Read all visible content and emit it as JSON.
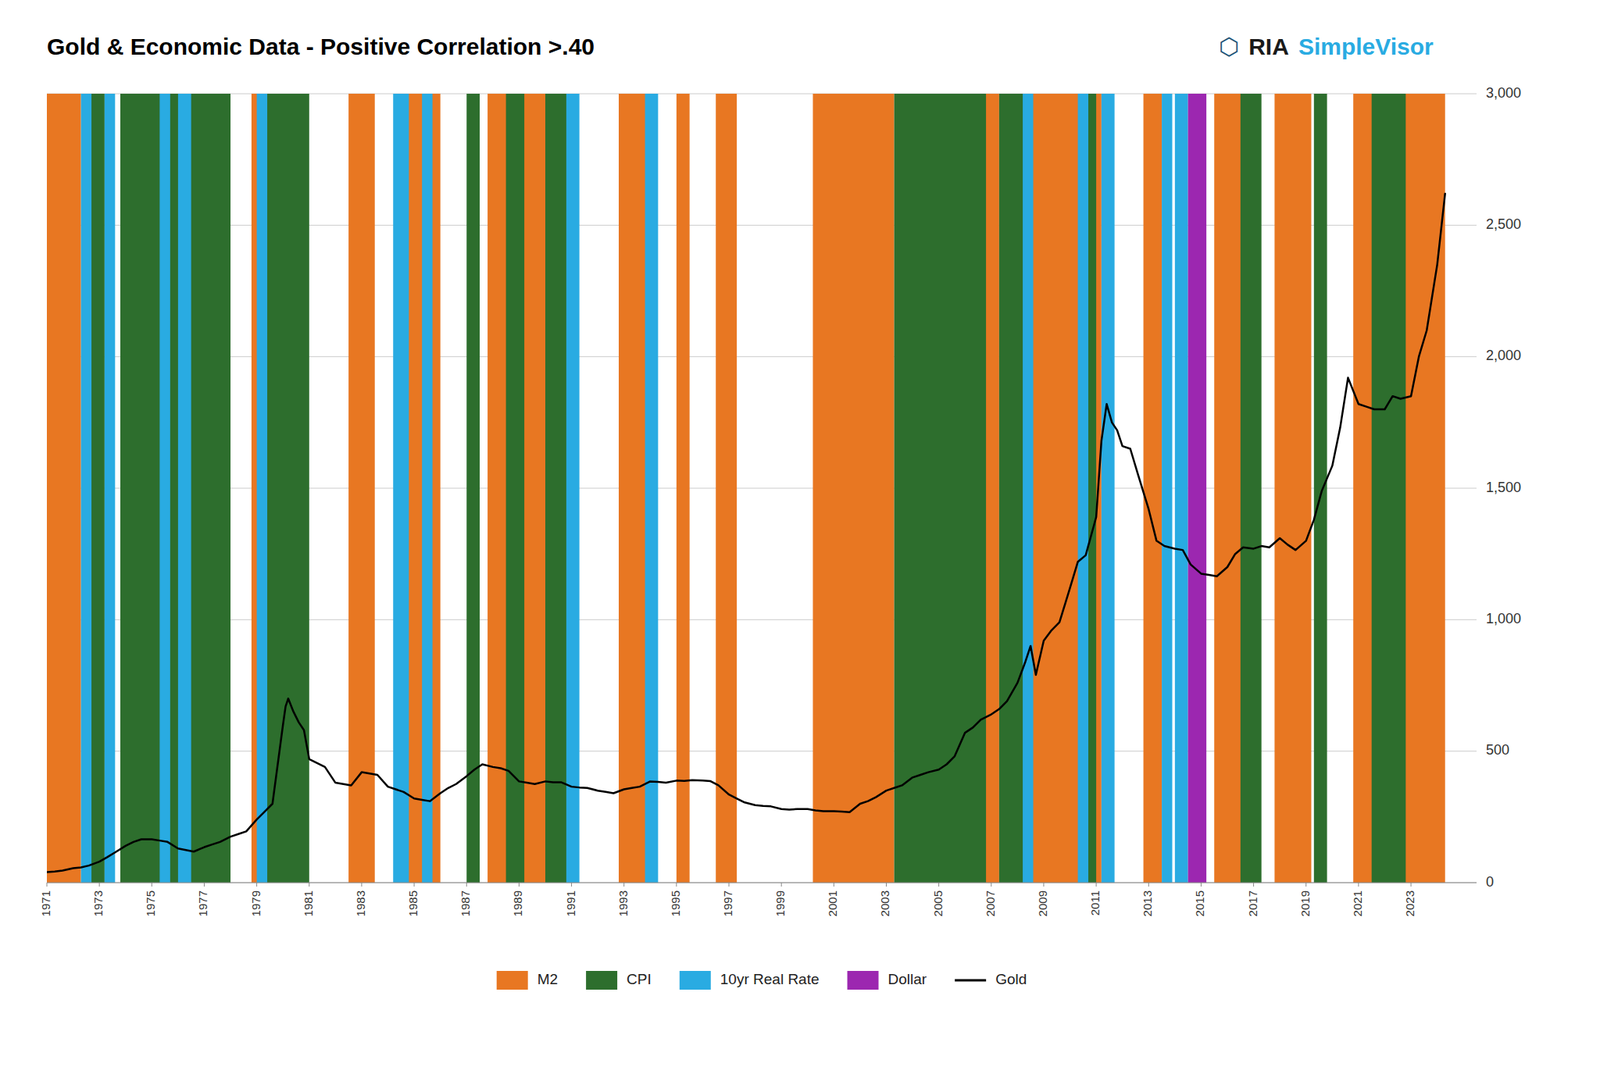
{
  "chart_data": {
    "type": "line",
    "title": "Gold & Economic Data - Positive Correlation >.40",
    "annotations": [
      {
        "text": "⬡",
        "color": "#1a5276"
      },
      {
        "text": "RIA",
        "color": "#1a1a1a"
      },
      {
        "text": "SimpleVisor",
        "color": "#29ABE2"
      }
    ],
    "xlim": [
      1971,
      2025.5
    ],
    "xticks": [
      1971,
      1973,
      1975,
      1977,
      1979,
      1981,
      1983,
      1985,
      1987,
      1989,
      1991,
      1993,
      1995,
      1997,
      1999,
      2001,
      2003,
      2005,
      2007,
      2009,
      2011,
      2013,
      2015,
      2017,
      2019,
      2021,
      2023
    ],
    "ylim": [
      0,
      3000
    ],
    "yticks": [
      0,
      500,
      {
        "value": 1000,
        "label": "1,000"
      },
      {
        "value": 1500,
        "label": "1,500"
      },
      {
        "value": 2000,
        "label": "2,000"
      },
      {
        "value": 2500,
        "label": "2,500"
      },
      {
        "value": 3000,
        "label": "3,000"
      }
    ],
    "grid": true,
    "legend": "bottom",
    "series": [
      {
        "name": "M2",
        "type": "band",
        "color": "#E87722",
        "bands": [
          [
            1971.0,
            1972.3
          ],
          [
            1974.2,
            1974.8
          ],
          [
            1975.5,
            1977.3
          ],
          [
            1978.8,
            1980.3
          ],
          [
            1982.5,
            1983.5
          ],
          [
            1984.5,
            1986.0
          ],
          [
            1987.8,
            1990.5
          ],
          [
            1992.8,
            1994.0
          ],
          [
            1995.0,
            1995.5
          ],
          [
            1996.5,
            1997.3
          ],
          [
            2000.2,
            2003.3
          ],
          [
            2004.5,
            2007.3
          ],
          [
            2008.5,
            2011.2
          ],
          [
            2012.8,
            2013.5
          ],
          [
            2015.5,
            2017.0
          ],
          [
            2017.8,
            2019.2
          ],
          [
            2020.8,
            2024.3
          ]
        ]
      },
      {
        "name": "CPI",
        "type": "band",
        "color": "#2D6E2D",
        "bands": [
          [
            1972.5,
            1973.2
          ],
          [
            1973.8,
            1978.0
          ],
          [
            1979.2,
            1981.0
          ],
          [
            1987.0,
            1987.5
          ],
          [
            1988.5,
            1989.2
          ],
          [
            1990.0,
            1991.2
          ],
          [
            2003.3,
            2006.8
          ],
          [
            2007.3,
            2008.5
          ],
          [
            2010.5,
            2011.0
          ],
          [
            2016.5,
            2017.3
          ],
          [
            2019.3,
            2019.8
          ],
          [
            2021.5,
            2022.8
          ]
        ]
      },
      {
        "name": "10yr Real Rate",
        "type": "band",
        "color": "#29ABE2",
        "bands": [
          [
            1972.3,
            1972.7
          ],
          [
            1973.2,
            1973.6
          ],
          [
            1975.3,
            1975.7
          ],
          [
            1976.0,
            1976.5
          ],
          [
            1979.0,
            1979.4
          ],
          [
            1984.2,
            1984.8
          ],
          [
            1985.3,
            1985.7
          ],
          [
            1990.8,
            1991.3
          ],
          [
            1993.8,
            1994.3
          ],
          [
            2008.2,
            2008.6
          ],
          [
            2010.3,
            2010.7
          ],
          [
            2011.2,
            2011.7
          ],
          [
            2013.5,
            2013.9
          ],
          [
            2014.0,
            2014.5
          ]
        ]
      },
      {
        "name": "Dollar",
        "type": "band",
        "color": "#9C27B0",
        "bands": [
          [
            2014.5,
            2015.2
          ]
        ]
      },
      {
        "name": "Gold",
        "type": "line",
        "color": "#000000",
        "x": [
          1971.0,
          1971.3,
          1971.6,
          1972.0,
          1972.3,
          1972.6,
          1973.0,
          1973.3,
          1973.6,
          1974.0,
          1974.3,
          1974.6,
          1975.0,
          1975.3,
          1975.6,
          1976.0,
          1976.3,
          1976.6,
          1977.0,
          1977.3,
          1977.6,
          1978.0,
          1978.3,
          1978.6,
          1979.0,
          1979.3,
          1979.6,
          1980.0,
          1980.1,
          1980.2,
          1980.4,
          1980.6,
          1980.8,
          1981.0,
          1981.3,
          1981.6,
          1982.0,
          1982.3,
          1982.6,
          1983.0,
          1983.3,
          1983.6,
          1984.0,
          1984.3,
          1984.6,
          1985.0,
          1985.3,
          1985.6,
          1986.0,
          1986.3,
          1986.6,
          1987.0,
          1987.3,
          1987.6,
          1988.0,
          1988.3,
          1988.6,
          1989.0,
          1989.3,
          1989.6,
          1990.0,
          1990.3,
          1990.6,
          1991.0,
          1991.3,
          1991.6,
          1992.0,
          1992.3,
          1992.6,
          1993.0,
          1993.3,
          1993.6,
          1994.0,
          1994.3,
          1994.6,
          1995.0,
          1995.3,
          1995.6,
          1996.0,
          1996.3,
          1996.6,
          1997.0,
          1997.3,
          1997.6,
          1998.0,
          1998.3,
          1998.6,
          1999.0,
          1999.3,
          1999.6,
          2000.0,
          2000.3,
          2000.6,
          2001.0,
          2001.3,
          2001.6,
          2002.0,
          2002.3,
          2002.6,
          2003.0,
          2003.3,
          2003.6,
          2004.0,
          2004.3,
          2004.6,
          2005.0,
          2005.3,
          2005.6,
          2006.0,
          2006.3,
          2006.6,
          2007.0,
          2007.3,
          2007.6,
          2008.0,
          2008.3,
          2008.5,
          2008.7,
          2009.0,
          2009.3,
          2009.6,
          2010.0,
          2010.3,
          2010.6,
          2011.0,
          2011.2,
          2011.4,
          2011.6,
          2011.8,
          2012.0,
          2012.3,
          2012.6,
          2013.0,
          2013.3,
          2013.6,
          2014.0,
          2014.3,
          2014.6,
          2015.0,
          2015.3,
          2015.6,
          2016.0,
          2016.3,
          2016.6,
          2017.0,
          2017.3,
          2017.6,
          2018.0,
          2018.3,
          2018.6,
          2019.0,
          2019.3,
          2019.6,
          2020.0,
          2020.3,
          2020.6,
          2021.0,
          2021.3,
          2021.6,
          2022.0,
          2022.3,
          2022.6,
          2023.0,
          2023.3,
          2023.6,
          2024.0,
          2024.3
        ],
        "values": [
          40,
          42,
          46,
          55,
          58,
          65,
          80,
          97,
          115,
          140,
          155,
          165,
          165,
          160,
          155,
          130,
          124,
          118,
          135,
          145,
          155,
          175,
          185,
          195,
          240,
          270,
          300,
          600,
          670,
          700,
          650,
          610,
          580,
          470,
          455,
          440,
          380,
          375,
          370,
          420,
          415,
          410,
          365,
          355,
          345,
          320,
          315,
          310,
          340,
          360,
          375,
          405,
          430,
          450,
          440,
          435,
          425,
          385,
          380,
          375,
          385,
          382,
          382,
          365,
          362,
          360,
          350,
          345,
          340,
          355,
          360,
          365,
          385,
          383,
          380,
          388,
          387,
          390,
          388,
          386,
          370,
          335,
          320,
          305,
          295,
          292,
          290,
          280,
          278,
          280,
          280,
          275,
          272,
          272,
          270,
          268,
          300,
          310,
          325,
          350,
          360,
          370,
          400,
          410,
          420,
          430,
          450,
          480,
          570,
          590,
          620,
          640,
          660,
          690,
          760,
          840,
          900,
          790,
          920,
          960,
          990,
          1120,
          1220,
          1245,
          1390,
          1680,
          1820,
          1750,
          1720,
          1660,
          1650,
          1550,
          1420,
          1300,
          1280,
          1270,
          1265,
          1210,
          1175,
          1170,
          1165,
          1200,
          1250,
          1275,
          1270,
          1280,
          1275,
          1310,
          1285,
          1265,
          1300,
          1380,
          1490,
          1585,
          1730,
          1920,
          1820,
          1810,
          1800,
          1800,
          1850,
          1840,
          1850,
          2000,
          2100,
          2350,
          2620
        ]
      }
    ]
  }
}
